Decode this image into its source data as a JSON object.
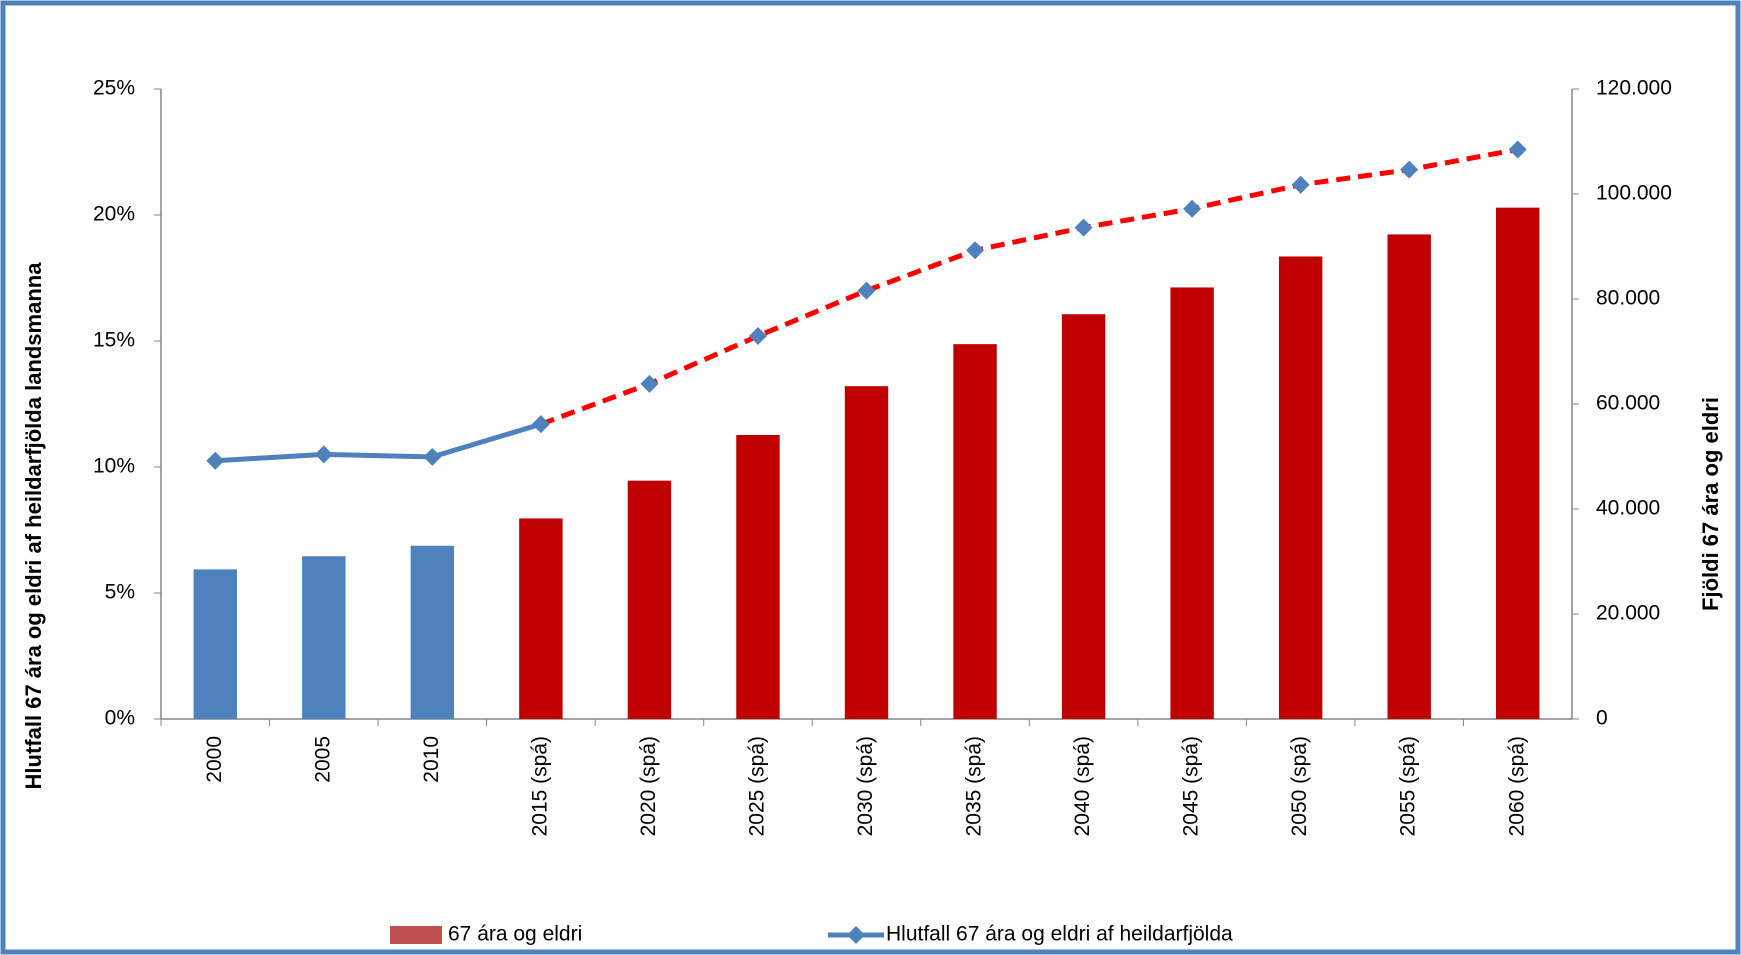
{
  "chart_data": {
    "type": "bar_line",
    "y_label": "Hlutfall 67 ára og eldri af heildarfjölda landsmanna",
    "y2_label": "Fjöldi 67 ára og eldri",
    "categories": [
      "2000",
      "2005",
      "2010",
      "2015 (spá)",
      "2020 (spá)",
      "2025 (spá)",
      "2030 (spá)",
      "2035 (spá)",
      "2040 (spá)",
      "2045 (spá)",
      "2050 (spá)",
      "2055 (spá)",
      "2060 (spá)"
    ],
    "series": [
      {
        "name": "67 ára og eldri",
        "type": "bar",
        "axis": "y2",
        "color": "#c0504d",
        "colors": [
          "#4f81bd",
          "#4f81bd",
          "#4f81bd",
          "#c00000",
          "#c00000",
          "#c00000",
          "#c00000",
          "#c00000",
          "#c00000",
          "#c00000",
          "#c00000",
          "#c00000",
          "#c00000"
        ],
        "values": [
          28500,
          31000,
          33000,
          38200,
          45400,
          54100,
          63400,
          71400,
          77100,
          82200,
          88100,
          92300,
          97400
        ]
      },
      {
        "name": "Hlutfall 67 ára og eldri af heildarfjölda",
        "type": "line",
        "axis": "y",
        "color": "#4f81bd",
        "forecast_color": "#ff0000",
        "dashed_from_category": "2015 (spá)",
        "values": [
          10.25,
          10.5,
          10.4,
          11.7,
          13.3,
          15.2,
          17.0,
          18.6,
          19.5,
          20.25,
          21.2,
          21.8,
          22.6
        ]
      }
    ],
    "ylim": [
      0,
      25
    ],
    "yticks": [
      {
        "value": 0,
        "label": "0%"
      },
      {
        "value": 5,
        "label": "5%"
      },
      {
        "value": 10,
        "label": "10%"
      },
      {
        "value": 15,
        "label": "15%"
      },
      {
        "value": 20,
        "label": "20%"
      },
      {
        "value": 25,
        "label": "25%"
      }
    ],
    "y2lim": [
      0,
      120000
    ],
    "y2ticks": [
      0,
      {
        "value": 20000,
        "label": "20.000"
      },
      {
        "value": 40000,
        "label": "40.000"
      },
      {
        "value": 60000,
        "label": "60.000"
      },
      {
        "value": 80000,
        "label": "80.000"
      },
      {
        "value": 100000,
        "label": "100.000"
      },
      {
        "value": 120000,
        "label": "120.000"
      }
    ],
    "legend": "bottom"
  }
}
